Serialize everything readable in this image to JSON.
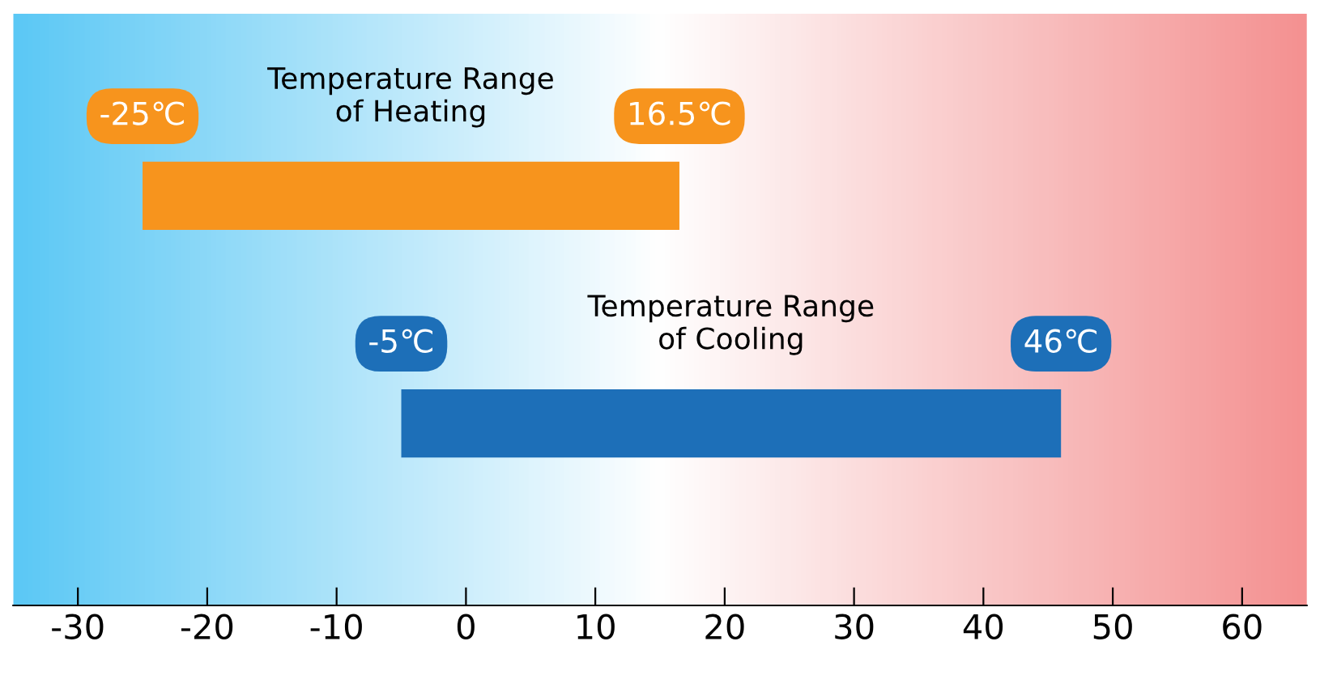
{
  "chart_data": {
    "type": "bar",
    "orientation": "horizontal",
    "categories": [
      "Temperature Range\nof Heating",
      "Temperature Range\nof Cooling"
    ],
    "base": [
      -25,
      -5
    ],
    "values": [
      41.5,
      51
    ],
    "colors": [
      "#f7941d",
      "#1d6fb8"
    ],
    "xlim": [
      -35,
      65
    ],
    "xticks": [
      -30,
      -20,
      -10,
      0,
      10,
      20,
      30,
      40,
      50,
      60
    ],
    "grid": false,
    "annotations": [
      {
        "text": "-25℃",
        "x": -25,
        "y": "Temperature Range\nof Heating"
      },
      {
        "text": "16.5℃",
        "x": 16.5,
        "y": "Temperature Range\nof Heating"
      },
      {
        "text": "-5℃",
        "x": -5,
        "y": "Temperature Range\nof Cooling"
      },
      {
        "text": "46℃",
        "x": 46,
        "y": "Temperature Range\nof Cooling"
      }
    ]
  }
}
